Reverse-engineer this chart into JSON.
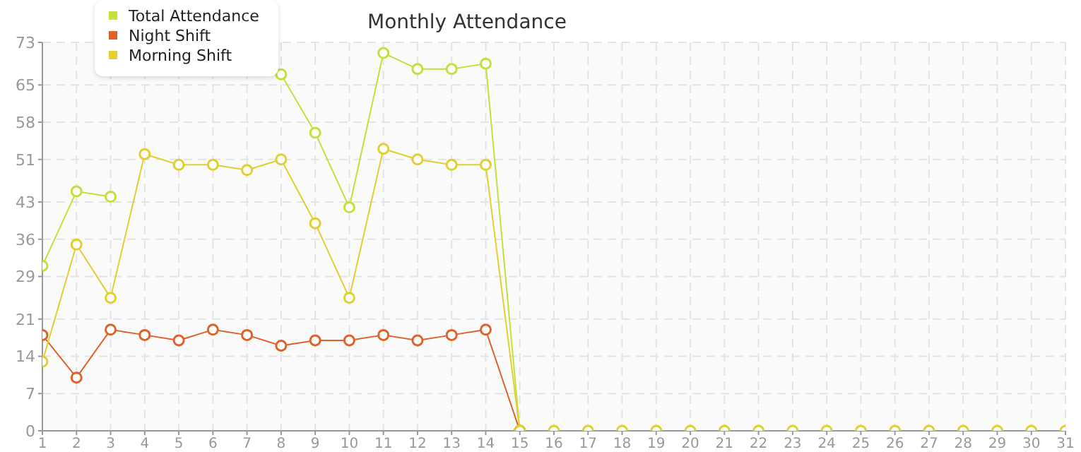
{
  "chart_data": {
    "type": "line",
    "title": "Monthly Attendance",
    "x": [
      1,
      2,
      3,
      4,
      5,
      6,
      7,
      8,
      9,
      10,
      11,
      12,
      13,
      14,
      15,
      16,
      17,
      18,
      19,
      20,
      21,
      22,
      23,
      24,
      25,
      26,
      27,
      28,
      29,
      30,
      31
    ],
    "series": [
      {
        "name": "Total Attendance",
        "color": "#c4e03a",
        "values": [
          31,
          45,
          44,
          null,
          null,
          null,
          null,
          67,
          56,
          42,
          71,
          68,
          68,
          69,
          0,
          null,
          null,
          null,
          null,
          null,
          null,
          null,
          null,
          null,
          null,
          null,
          null,
          null,
          null,
          null,
          null
        ]
      },
      {
        "name": "Night Shift",
        "color": "#e0622a",
        "values": [
          18,
          10,
          19,
          18,
          17,
          19,
          18,
          16,
          17,
          17,
          18,
          17,
          18,
          19,
          0,
          null,
          null,
          null,
          null,
          null,
          null,
          null,
          null,
          null,
          null,
          null,
          null,
          null,
          null,
          null,
          null
        ]
      },
      {
        "name": "Morning Shift",
        "color": "#e0d030",
        "values": [
          13,
          35,
          25,
          52,
          50,
          50,
          49,
          51,
          39,
          25,
          53,
          51,
          50,
          50,
          0,
          0,
          0,
          0,
          0,
          0,
          0,
          0,
          0,
          0,
          0,
          0,
          0,
          0,
          0,
          0,
          0
        ]
      }
    ],
    "xlim": [
      1,
      31
    ],
    "xticks": [
      1,
      2,
      3,
      4,
      5,
      6,
      7,
      8,
      9,
      10,
      11,
      12,
      13,
      14,
      15,
      16,
      17,
      18,
      19,
      20,
      21,
      22,
      23,
      24,
      25,
      26,
      27,
      28,
      29,
      30,
      31
    ],
    "ylim": [
      0,
      73
    ],
    "yticks": [
      0,
      7,
      14,
      21,
      29,
      36,
      43,
      51,
      58,
      65,
      73
    ],
    "grid": true,
    "legend": "top left",
    "marker": "circle",
    "line_style": "solid"
  }
}
